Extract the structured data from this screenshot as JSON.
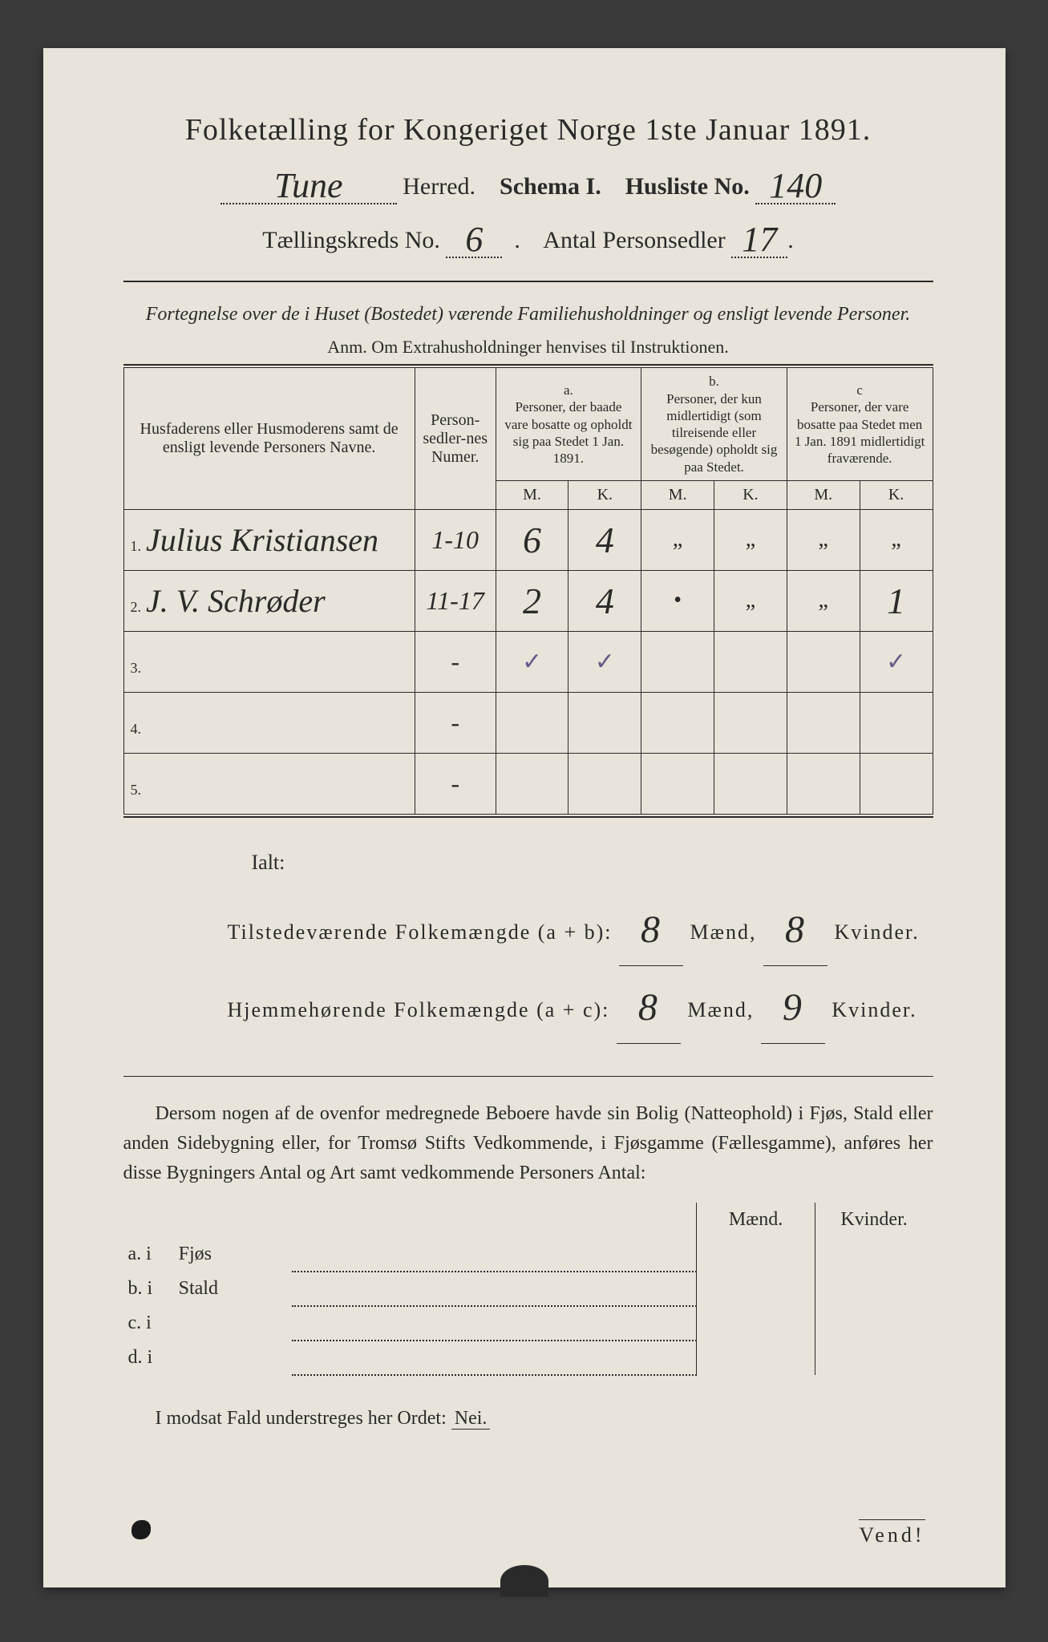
{
  "colors": {
    "pageBg": "#e8e4da",
    "outerBg": "#3a3a3a",
    "ink": "#2a2a2a",
    "pencilCheck": "#6a5a8a"
  },
  "title": "Folketælling for Kongeriget Norge 1ste Januar 1891.",
  "header": {
    "herredValue": "Tune",
    "herredLabel": "Herred.",
    "schemaLabel": "Schema I.",
    "huslisteLabel": "Husliste No.",
    "huslisteNo": "140",
    "kredsLabel": "Tællingskreds No.",
    "kredsNo": "6",
    "antalLabel": "Antal Personsedler",
    "antalVal": "17"
  },
  "subheading": "Fortegnelse over de i Huset (Bostedet) værende Familiehusholdninger og ensligt levende Personer.",
  "anm": "Anm. Om Extrahusholdninger henvises til Instruktionen.",
  "tableHeaders": {
    "nameCol": "Husfaderens eller Husmoderens samt de ensligt levende Personers Navne.",
    "numCol": "Person-sedler-nes Numer.",
    "colA_label": "a.",
    "colA": "Personer, der baade vare bosatte og opholdt sig paa Stedet 1 Jan. 1891.",
    "colB_label": "b.",
    "colB": "Personer, der kun midlertidigt (som tilreisende eller besøgende) opholdt sig paa Stedet.",
    "colC_label": "c",
    "colC": "Personer, der vare bosatte paa Stedet men 1 Jan. 1891 midlertidigt fraværende.",
    "M": "M.",
    "K": "K."
  },
  "rows": [
    {
      "n": "1.",
      "name": "Julius Kristiansen",
      "num": "1-10",
      "aM": "6",
      "aK": "4",
      "bM": "„",
      "bK": "„",
      "cM": "„",
      "cK": "„"
    },
    {
      "n": "2.",
      "name": "J. V. Schrøder",
      "num": "11-17",
      "aM": "2",
      "aK": "4",
      "bM": "•",
      "bK": "„",
      "cM": "„",
      "cK": "1"
    },
    {
      "n": "3.",
      "name": "",
      "num": "-",
      "aM": "✓",
      "aK": "✓",
      "bM": "",
      "bK": "",
      "cM": "",
      "cK": "✓"
    },
    {
      "n": "4.",
      "name": "",
      "num": "-",
      "aM": "",
      "aK": "",
      "bM": "",
      "bK": "",
      "cM": "",
      "cK": ""
    },
    {
      "n": "5.",
      "name": "",
      "num": "-",
      "aM": "",
      "aK": "",
      "bM": "",
      "bK": "",
      "cM": "",
      "cK": ""
    }
  ],
  "totals": {
    "ialt": "Ialt:",
    "line1Label": "Tilstedeværende Folkemængde (a + b):",
    "line1M": "8",
    "line1K": "8",
    "line2Label": "Hjemmehørende Folkemængde (a + c):",
    "line2M": "8",
    "line2K": "9",
    "maend": "Mænd,",
    "kvinder": "Kvinder."
  },
  "para": "Dersom nogen af de ovenfor medregnede Beboere havde sin Bolig (Natteophold) i Fjøs, Stald eller anden Sidebygning eller, for Tromsø Stifts Vedkommende, i Fjøsgamme (Fællesgamme), anføres her disse Bygningers Antal og Art samt vedkommende Personers Antal:",
  "buildings": {
    "headM": "Mænd.",
    "headK": "Kvinder.",
    "rows": [
      {
        "lbl": "a.  i",
        "name": "Fjøs"
      },
      {
        "lbl": "b.  i",
        "name": "Stald"
      },
      {
        "lbl": "c.  i",
        "name": ""
      },
      {
        "lbl": "d.  i",
        "name": ""
      }
    ]
  },
  "neiLine": "I modsat Fald understreges her Ordet:",
  "nei": "Nei.",
  "vend": "Vend!"
}
